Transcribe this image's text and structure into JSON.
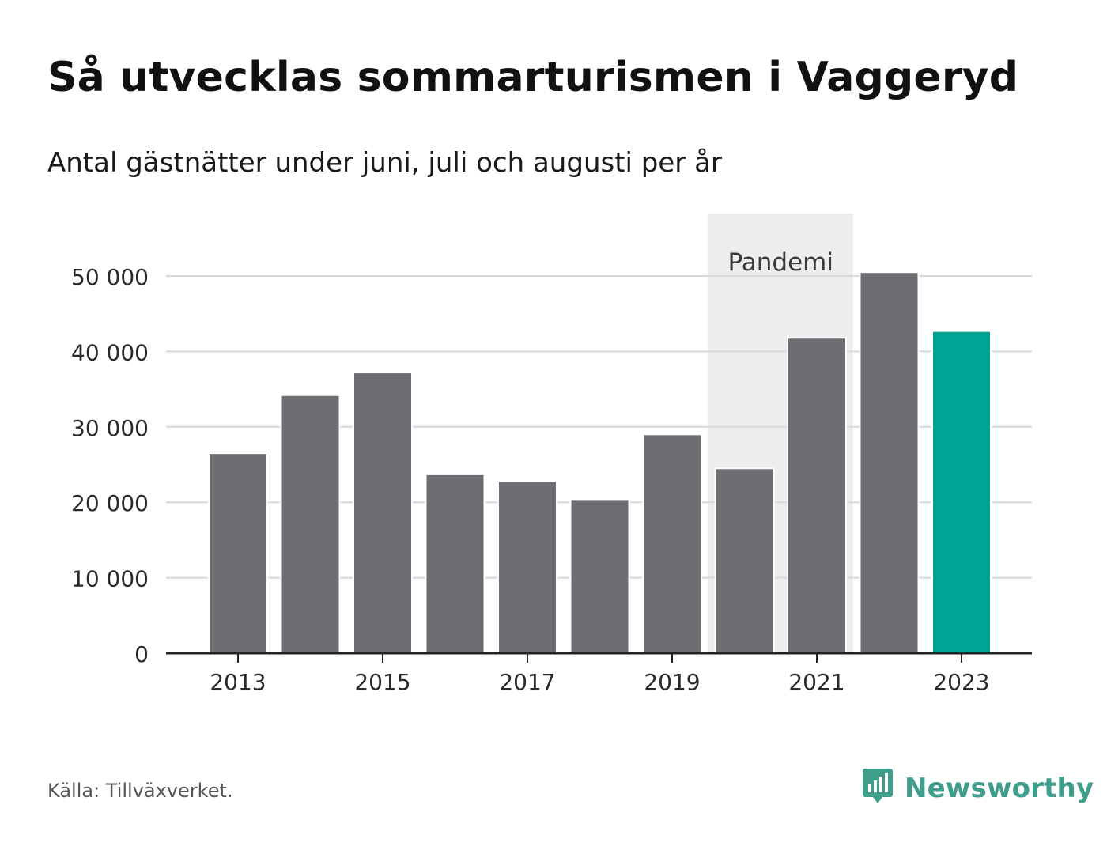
{
  "title": "Så utvecklas sommarturismen i Vaggeryd",
  "subtitle": "Antal gästnätter under juni, juli och augusti per år",
  "source": "Källa: Tillväxverket.",
  "brand": {
    "name": "Newsworthy",
    "color": "#3f9d8c",
    "icon": "bar-chart-speech-bubble-icon"
  },
  "colors": {
    "bar_default": "#6e6d73",
    "bar_highlight": "#00a497",
    "band": "#ededee",
    "grid": "#d8d8d8",
    "axis": "#222222"
  },
  "chart_data": {
    "type": "bar",
    "categories": [
      "2013",
      "2014",
      "2015",
      "2016",
      "2017",
      "2018",
      "2019",
      "2020",
      "2021",
      "2022",
      "2023"
    ],
    "values": [
      26500,
      34200,
      37200,
      23700,
      22800,
      20400,
      29000,
      24500,
      41800,
      50500,
      42700
    ],
    "highlight_category": "2023",
    "xtick_labels": [
      "2013",
      "2015",
      "2017",
      "2019",
      "2021",
      "2023"
    ],
    "yticks": [
      0,
      10000,
      20000,
      30000,
      40000,
      50000
    ],
    "ytick_labels": [
      "0",
      "10 000",
      "20 000",
      "30 000",
      "40 000",
      "50 000"
    ],
    "ylim": [
      0,
      58000
    ],
    "grid": true,
    "shaded_range": {
      "label": "Pandemi",
      "from": "2020",
      "to": "2021"
    }
  }
}
